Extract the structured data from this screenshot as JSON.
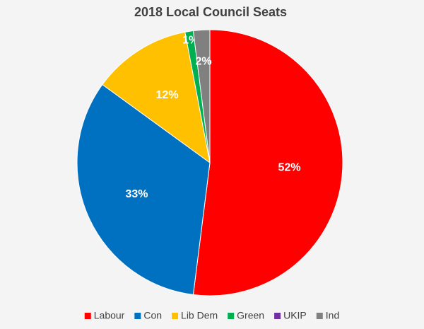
{
  "chart_data": {
    "type": "pie",
    "title": "2018 Local Council Seats",
    "categories": [
      "Labour",
      "Con",
      "Lib Dem",
      "Green",
      "UKIP",
      "Ind"
    ],
    "values": [
      52,
      33,
      12,
      1,
      0,
      2
    ],
    "value_labels": [
      "52%",
      "33%",
      "12%",
      "1%",
      null,
      "2%"
    ],
    "colors": [
      "#ff0000",
      "#0070c0",
      "#ffc000",
      "#00b050",
      "#7030a0",
      "#808080"
    ],
    "start_angle": 0,
    "direction": "clockwise",
    "legend": "bottom"
  }
}
